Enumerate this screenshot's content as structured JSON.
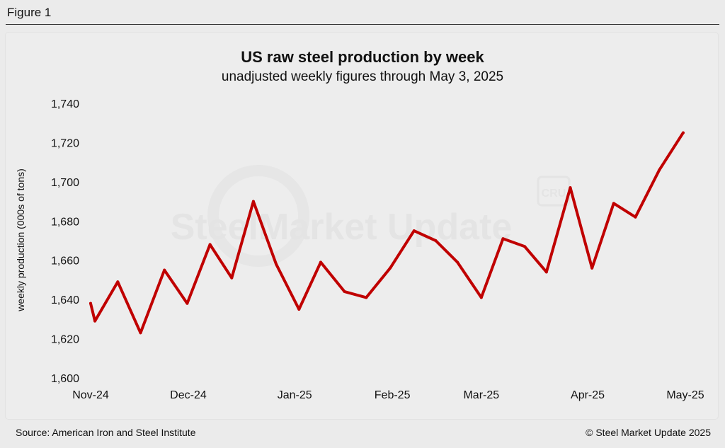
{
  "figure_label": "Figure 1",
  "footer": {
    "source": "Source: American Iron and Steel Institute",
    "copyright": "© Steel Market Update 2025"
  },
  "watermark": {
    "text": "SteelMarket Update",
    "badge": "CRU"
  },
  "colors": {
    "line": "#c00000",
    "background": "#ebebeb"
  },
  "chart_data": {
    "type": "line",
    "title": "US raw steel production by week",
    "subtitle": "unadjusted weekly figures through May 3, 2025",
    "ylabel": "weekly production (000s of tons)",
    "xlabel": "",
    "ylim": [
      1600,
      1740
    ],
    "yticks": [
      1600,
      1620,
      1640,
      1660,
      1680,
      1700,
      1720,
      1740
    ],
    "ytick_labels": [
      "1,600",
      "1,620",
      "1,640",
      "1,660",
      "1,680",
      "1,700",
      "1,720",
      "1,740"
    ],
    "xtick_labels": [
      "Nov-24",
      "Dec-24",
      "Jan-25",
      "Feb-25",
      "Mar-25",
      "Apr-25",
      "May-25"
    ],
    "xtick_positions": [
      0,
      4.5,
      9.4,
      13.9,
      18.0,
      22.9,
      27.4
    ],
    "grid": false,
    "legend": "none",
    "series": [
      {
        "x": [
          0,
          0.2,
          1.25,
          2.3,
          3.4,
          4.45,
          5.5,
          6.5,
          7.5,
          8.55,
          9.6,
          10.6,
          11.7,
          12.7,
          13.8,
          14.9,
          15.9,
          16.9,
          18.0,
          19.0,
          20.0,
          21.0,
          22.1,
          23.1,
          24.1,
          25.1,
          26.2,
          27.3
        ],
        "values": [
          1638,
          1629,
          1649,
          1623,
          1655,
          1638,
          1668,
          1651,
          1690,
          1658,
          1635,
          1659,
          1644,
          1641,
          1656,
          1675,
          1670,
          1659,
          1641,
          1671,
          1667,
          1654,
          1697,
          1656,
          1689,
          1682,
          1706,
          1725
        ]
      }
    ]
  }
}
